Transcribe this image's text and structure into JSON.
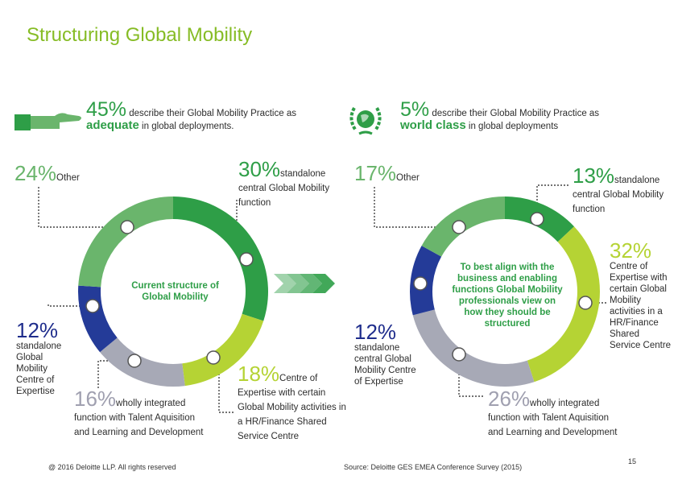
{
  "title": "Structuring Global Mobility",
  "colors": {
    "title": "#86bc25",
    "green": "#2e9e47",
    "lime": "#8cc63e",
    "lightgreen": "#6ab56c",
    "grey": "#a7a9b6",
    "blue": "#243b98"
  },
  "header_left": {
    "pct": "45%",
    "text1": " describe their Global Mobility Practice as",
    "bold": "adequate",
    "text2": " in global deployments.",
    "icon": "thumbs-up-hand-icon"
  },
  "header_right": {
    "pct": "5%",
    "text1": " describe their Global Mobility Practice as",
    "bold": "world class",
    "text2": " in global deployments",
    "icon": "globe-laurel-icon"
  },
  "left_chart_center": "Current structure of Global Mobility",
  "right_chart_center": "To best align with the business and enabling functions Global Mobility professionals view on how they should be structured",
  "labels_left": {
    "other_pct": "24%",
    "other_txt": "Other",
    "cgm_pct": "30%",
    "cgm_txt": "standalone central Global Mobility function",
    "coe_pct": "12%",
    "coe_txt": "standalone Global Mobility Centre of Expertise",
    "talent_pct": "16%",
    "talent_txt": "wholly integrated function with Talent Aquisition and Learning and Development",
    "hr_pct": "18%",
    "hr_txt": "Centre of Expertise with certain Global Mobility activities in a HR/Finance Shared Service Centre"
  },
  "labels_right": {
    "other_pct": "17%",
    "other_txt": "Other",
    "cgm_pct": "13%",
    "cgm_txt": "standalone central Global Mobility function",
    "hr_pct": "32%",
    "hr_txt": "Centre of Expertise with certain Global Mobility activities in a HR/Finance Shared Service Centre",
    "coe_pct": "12%",
    "coe_txt": "standalone central Global Mobility Centre of Expertise",
    "talent_pct": "26%",
    "talent_txt": "wholly integrated function with Talent Aquisition and Learning and Development"
  },
  "footer": {
    "copyright": "@ 2016 Deloitte LLP. All rights reserved",
    "source": "Source: Deloitte GES EMEA Conference Survey (2015)",
    "page": "15"
  },
  "chart_data": [
    {
      "type": "pie",
      "title": "Current structure of Global Mobility",
      "categories": [
        "standalone central Global Mobility function",
        "Centre of Expertise with certain Global Mobility activities in a HR/Finance Shared Service Centre",
        "wholly integrated function with Talent Aquisition and Learning and Development",
        "standalone Global Mobility Centre of Expertise",
        "Other"
      ],
      "values": [
        30,
        18,
        16,
        12,
        24
      ],
      "colors": [
        "#2e9e47",
        "#b5d334",
        "#a7a9b6",
        "#243b98",
        "#6ab56c"
      ]
    },
    {
      "type": "pie",
      "title": "To best align with the business and enabling functions Global Mobility professionals view on how they should be structured",
      "categories": [
        "standalone central Global Mobility function",
        "Centre of Expertise with certain Global Mobility activities in a HR/Finance Shared Service Centre",
        "wholly integrated function with Talent Aquisition and Learning and Development",
        "standalone central Global Mobility Centre of Expertise",
        "Other"
      ],
      "values": [
        13,
        32,
        26,
        12,
        17
      ],
      "colors": [
        "#2e9e47",
        "#b5d334",
        "#a7a9b6",
        "#243b98",
        "#6ab56c"
      ]
    }
  ]
}
